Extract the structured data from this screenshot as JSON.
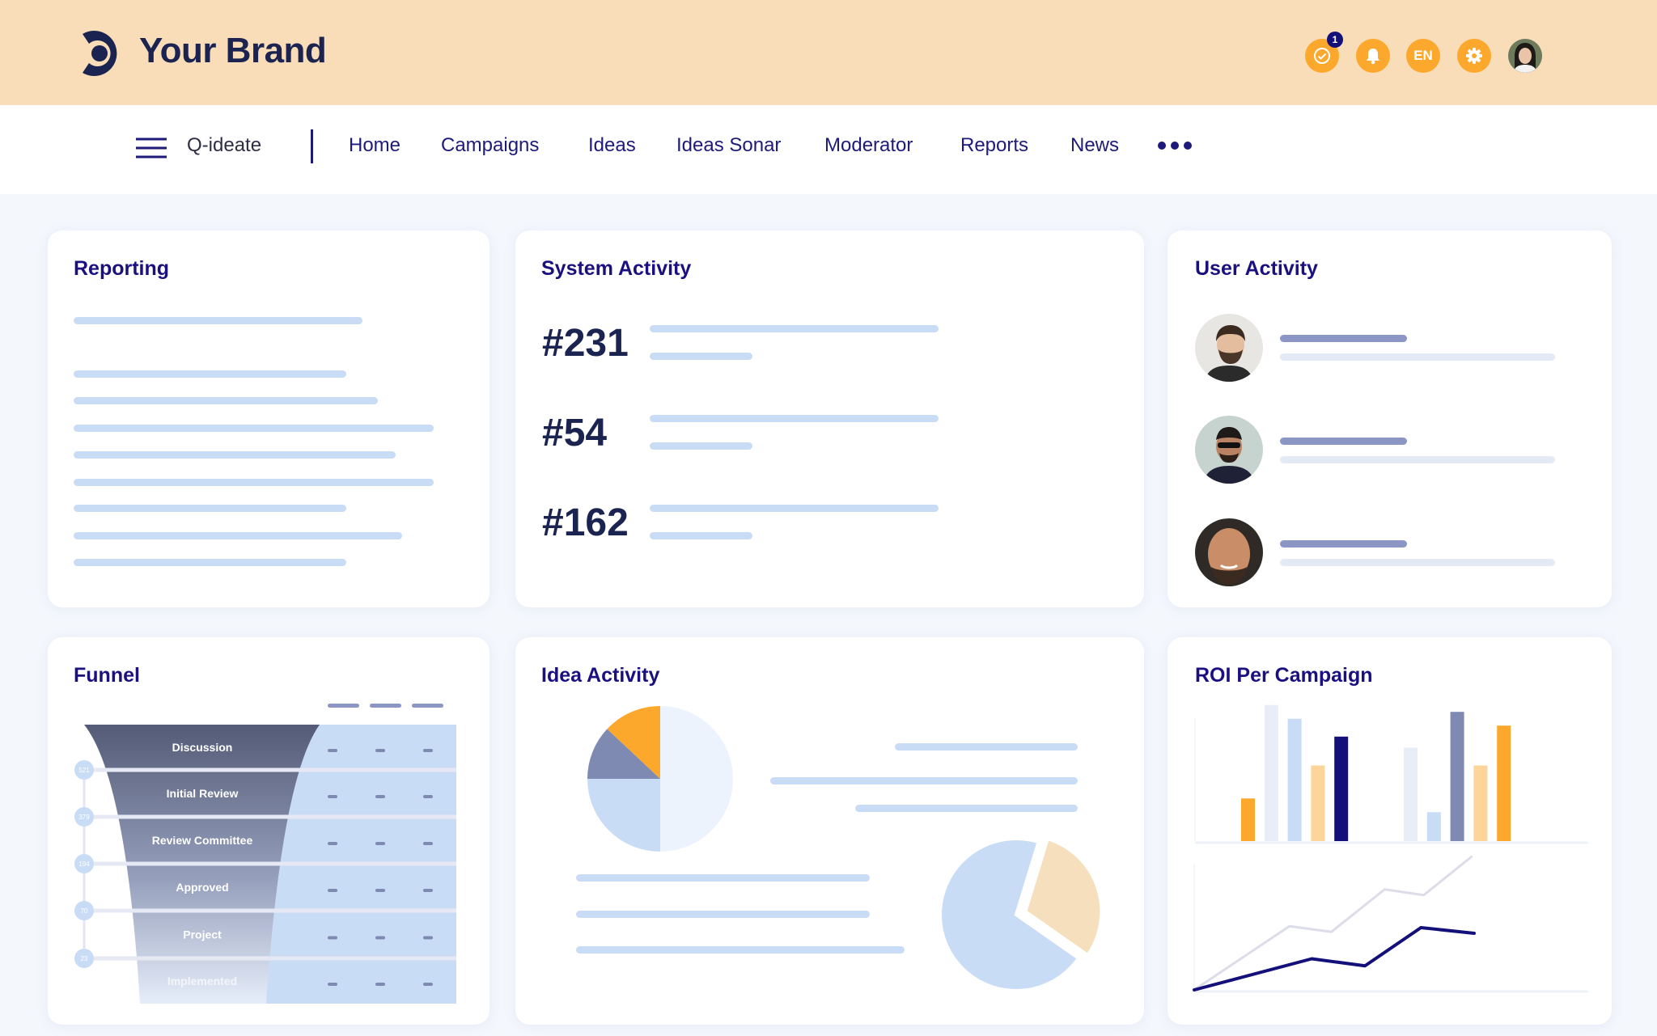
{
  "header": {
    "brand": "Your Brand",
    "icons": [
      "check-circle-icon",
      "bell-icon",
      "language-icon",
      "gear-icon",
      "user-avatar"
    ],
    "notification_count": "1",
    "language": "EN"
  },
  "nav": {
    "app_name": "Q-ideate",
    "items": [
      "Home",
      "Campaigns",
      "Ideas",
      "Ideas Sonar",
      "Moderator",
      "Reports",
      "News"
    ],
    "more_icon": "ellipsis-icon"
  },
  "reporting": {
    "title": "Reporting"
  },
  "system_activity": {
    "title": "System Activity",
    "items": [
      "#231",
      "#54",
      "#162"
    ]
  },
  "user_activity": {
    "title": "User Activity"
  },
  "funnel": {
    "title": "Funnel",
    "stages": [
      "Discussion",
      "Initial Review",
      "Review Committee",
      "Approved",
      "Project",
      "Implemented"
    ],
    "counts": [
      "521",
      "379",
      "194",
      "70",
      "23"
    ]
  },
  "idea_activity": {
    "title": "Idea Activity"
  },
  "roi": {
    "title": "ROI Per Campaign"
  },
  "colors": {
    "header_bg": "#f8ddb8",
    "accent_orange": "#fca82d",
    "navy": "#14107a",
    "brand_dark": "#1b2350",
    "placeholder_blue": "#c9dcf5"
  },
  "chart_data": [
    {
      "type": "pie",
      "values": [
        50,
        25,
        12,
        13
      ],
      "colors": [
        "#edf3fc",
        "#c9dcf5",
        "#7f8ab3",
        "#fba82c"
      ]
    },
    {
      "type": "pie",
      "values": [
        30,
        70
      ],
      "colors": [
        "#f6dfbd",
        "#c9dcf5"
      ],
      "exploded": [
        true,
        false
      ]
    },
    {
      "type": "bar",
      "ylim": [
        0,
        100
      ],
      "grid": false,
      "groups": [
        {
          "values": [
            31,
            99,
            89,
            55,
            76
          ],
          "colors": [
            "#fba82c",
            "#e9edf7",
            "#c9dcf5",
            "#fdd49a",
            "#14107a"
          ]
        },
        {
          "values": [
            68,
            21,
            94,
            55,
            84
          ],
          "colors": [
            "#e9edf7",
            "#c9dcf5",
            "#7f8ab3",
            "#fdd49a",
            "#fba82c"
          ]
        }
      ]
    },
    {
      "type": "line",
      "ylim": [
        0,
        100
      ],
      "xlim": [
        0,
        10
      ],
      "grid": false,
      "series": [
        {
          "color": "#dcdde8",
          "x": [
            0,
            3.4,
            4.9,
            6.8,
            8.2,
            9.9
          ],
          "y": [
            0,
            45,
            41,
            71,
            67,
            94
          ]
        },
        {
          "color": "#14107a",
          "x": [
            0,
            4.2,
            6.1,
            8.1,
            10
          ],
          "y": [
            0,
            22,
            17,
            44,
            40
          ]
        }
      ]
    }
  ]
}
